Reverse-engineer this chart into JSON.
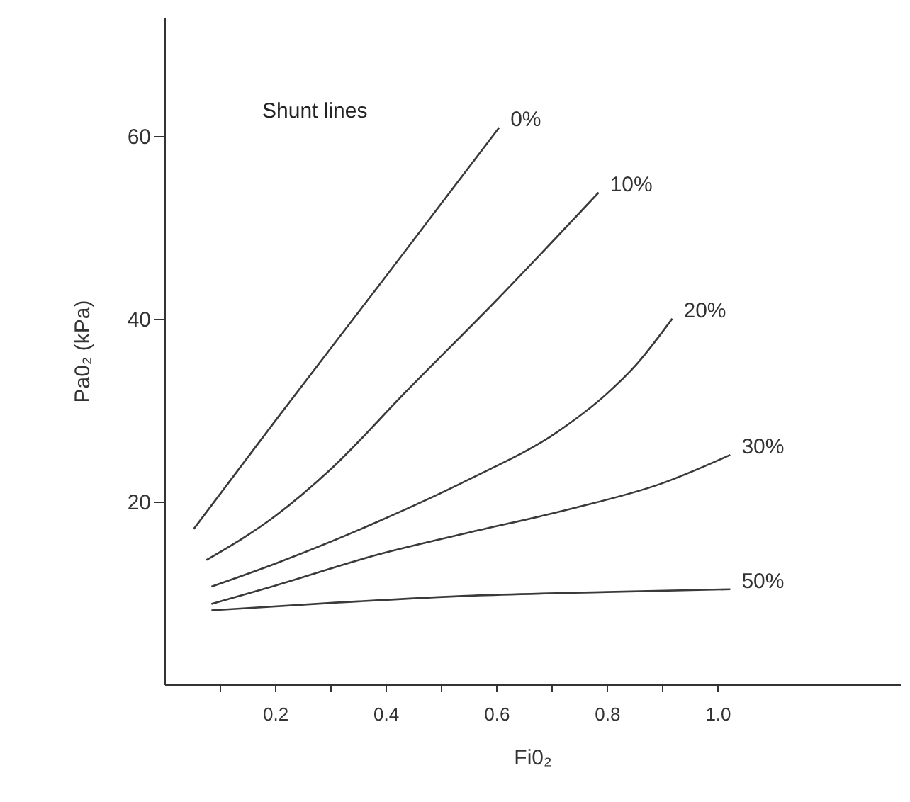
{
  "chart_data": {
    "type": "line",
    "xlabel": "Fi0₂",
    "ylabel": "Pa0₂ (kPa)",
    "annotations": [
      "Shunt lines"
    ],
    "xlim": [
      0,
      1.33
    ],
    "ylim": [
      0,
      73
    ],
    "xticks": [
      {
        "value": 0.1,
        "label": null
      },
      0.2,
      {
        "value": 0.3,
        "label": null
      },
      0.4,
      {
        "value": 0.5,
        "label": null
      },
      0.6,
      {
        "value": 0.7,
        "label": null
      },
      0.8,
      {
        "value": 0.9,
        "label": null
      },
      {
        "value": 1.0,
        "label": "1.0"
      }
    ],
    "yticks": [
      20,
      40,
      60
    ],
    "grid": false,
    "line_style": "solid",
    "series": [
      {
        "name": "0%",
        "color": "#3a3a3a",
        "x": [
          0.053,
          0.2,
          0.4,
          0.605
        ],
        "values": [
          17.0,
          28.8,
          44.6,
          60.9
        ]
      },
      {
        "name": "10%",
        "color": "#3a3a3a",
        "x": [
          0.076,
          0.2,
          0.3,
          0.438,
          0.6,
          0.785
        ],
        "values": [
          13.6,
          18.4,
          23.5,
          32.1,
          42.0,
          53.8
        ]
      },
      {
        "name": "20%",
        "color": "#3a3a3a",
        "x": [
          0.085,
          0.2,
          0.386,
          0.55,
          0.71,
          0.8,
          0.852,
          0.918
        ],
        "values": [
          10.7,
          13.2,
          17.8,
          22.4,
          27.6,
          31.8,
          34.9,
          40.0
        ]
      },
      {
        "name": "30%",
        "color": "#3a3a3a",
        "x": [
          0.085,
          0.2,
          0.386,
          0.55,
          0.728,
          0.9,
          1.023
        ],
        "values": [
          8.8,
          10.8,
          14.2,
          16.6,
          19.1,
          22.0,
          25.1
        ]
      },
      {
        "name": "50%",
        "color": "#3a3a3a",
        "x": [
          0.085,
          0.3,
          0.556,
          0.8,
          1.023
        ],
        "values": [
          8.1,
          8.9,
          9.7,
          10.1,
          10.4
        ]
      }
    ]
  }
}
